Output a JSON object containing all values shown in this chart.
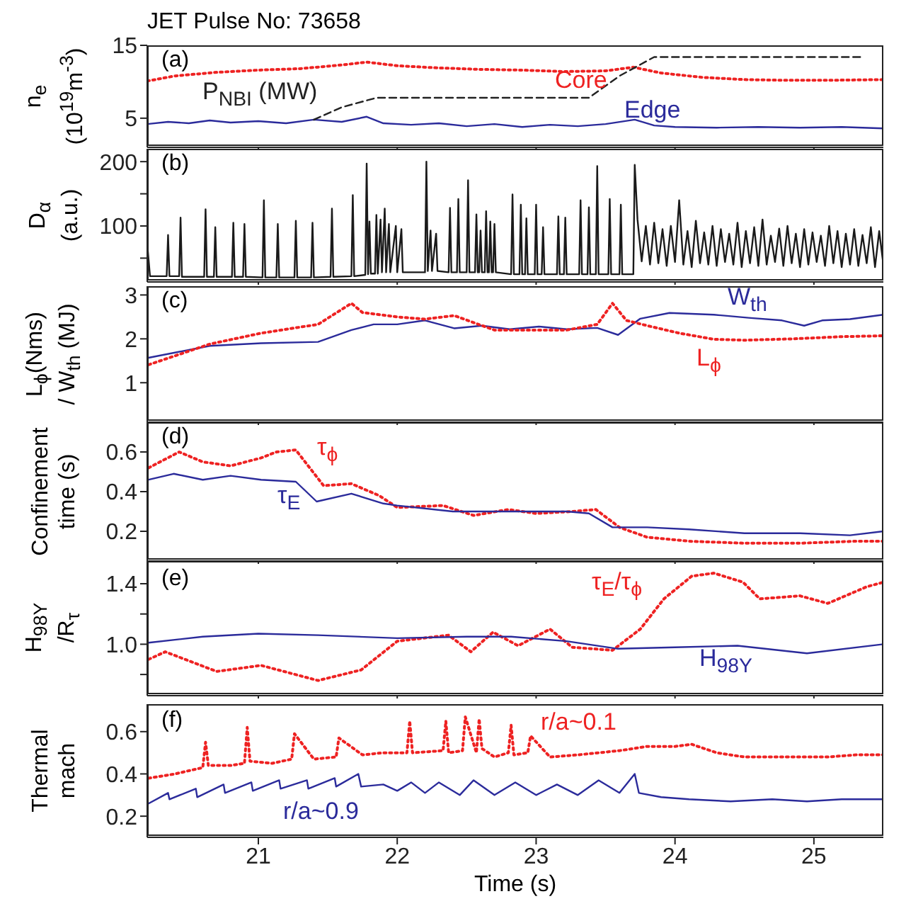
{
  "chart_data": [
    {
      "type": "line",
      "title": "JET Pulse No: 73658",
      "ylabel": "n$_{e}$\n(10$^{19}$m$^{-3}$)",
      "annotations": [
        "(a)"
      ],
      "xlim": [
        20.2,
        25.5
      ],
      "xticks": [
        21,
        22,
        23,
        24,
        25
      ],
      "ylim": [
        1,
        15
      ],
      "yticks": [
        5,
        15
      ],
      "tick_labels": "y",
      "series": [
        {
          "name": "Core",
          "color": "#ee2222",
          "line_style": "dotted",
          "x": [
            20.2,
            20.4,
            20.7,
            21.0,
            21.3,
            21.6,
            21.78,
            22.0,
            22.3,
            22.6,
            22.9,
            23.2,
            23.5,
            23.7,
            23.9,
            24.2,
            24.5,
            24.8,
            25.1,
            25.5
          ],
          "values": [
            10.1,
            10.8,
            11.3,
            11.6,
            11.8,
            12.3,
            12.7,
            12.2,
            11.9,
            11.7,
            11.6,
            11.4,
            11.5,
            12.0,
            11.2,
            10.6,
            10.3,
            10.2,
            10.2,
            10.3
          ]
        },
        {
          "name": "Edge",
          "color": "#2b2b9b",
          "line_style": "solid",
          "x": [
            20.2,
            20.35,
            20.5,
            20.65,
            20.8,
            21.0,
            21.2,
            21.4,
            21.6,
            21.78,
            21.9,
            22.1,
            22.3,
            22.5,
            22.7,
            22.9,
            23.1,
            23.3,
            23.5,
            23.71,
            23.85,
            24.0,
            24.3,
            24.6,
            24.9,
            25.2,
            25.5
          ],
          "values": [
            4.2,
            4.5,
            4.3,
            4.7,
            4.4,
            4.6,
            4.3,
            4.8,
            4.5,
            5.2,
            4.3,
            4.1,
            4.3,
            3.9,
            4.2,
            3.8,
            4.1,
            3.9,
            4.2,
            4.8,
            4.0,
            3.8,
            3.7,
            3.8,
            3.7,
            3.8,
            3.6
          ]
        },
        {
          "name": "P$_{NBI}$ (MW)",
          "color": "#222222",
          "line_style": "dashed",
          "x": [
            21.4,
            21.6,
            21.85,
            23.38,
            23.6,
            23.85,
            25.36
          ],
          "values": [
            4.8,
            6.5,
            7.8,
            7.8,
            10.8,
            13.4,
            13.4
          ]
        }
      ]
    },
    {
      "type": "line",
      "ylabel": "D$_{α}$\n(a.u.)",
      "annotations": [
        "(b)"
      ],
      "xlim": [
        20.2,
        25.5
      ],
      "xticks": [
        21,
        22,
        23,
        24,
        25
      ],
      "ylim": [
        13,
        220
      ],
      "yticks": [
        {
          "value": 50,
          "label": null
        },
        100,
        {
          "value": 150,
          "label": null
        },
        200
      ],
      "tick_labels": "y",
      "series": [
        {
          "color": "#1a1a1a",
          "line_style": "solid",
          "x": [
            20.2,
            20.22,
            20.34,
            20.35,
            20.36,
            20.43,
            20.44,
            20.45,
            20.61,
            20.62,
            20.63,
            20.68,
            20.69,
            20.7,
            20.81,
            20.82,
            20.83,
            20.89,
            20.9,
            20.91,
            21.03,
            21.04,
            21.05,
            21.13,
            21.14,
            21.15,
            21.26,
            21.27,
            21.28,
            21.38,
            21.39,
            21.4,
            21.52,
            21.53,
            21.54,
            21.67,
            21.68,
            21.69,
            21.77,
            21.78,
            21.79,
            21.8,
            21.81,
            21.84,
            21.85,
            21.86,
            21.88,
            21.89,
            21.91,
            21.92,
            21.94,
            21.95,
            21.99,
            22.0,
            22.03,
            22.04,
            22.2,
            22.21,
            22.22,
            22.24,
            22.25,
            22.28,
            22.29,
            22.37,
            22.38,
            22.39,
            22.43,
            22.44,
            22.45,
            22.5,
            22.51,
            22.52,
            22.56,
            22.57,
            22.58,
            22.59,
            22.6,
            22.61,
            22.63,
            22.64,
            22.65,
            22.66,
            22.67,
            22.68,
            22.69,
            22.7,
            22.71,
            22.82,
            22.83,
            22.84,
            22.88,
            22.89,
            22.9,
            22.92,
            22.93,
            22.94,
            22.99,
            23.0,
            23.01,
            23.04,
            23.05,
            23.06,
            23.15,
            23.16,
            23.17,
            23.2,
            23.21,
            23.22,
            23.31,
            23.32,
            23.33,
            23.37,
            23.38,
            23.39,
            23.43,
            23.44,
            23.45,
            23.52,
            23.53,
            23.54,
            23.6,
            23.61,
            23.62,
            23.7,
            23.71,
            23.73,
            23.76,
            23.79,
            23.82,
            23.85,
            23.88,
            23.91,
            23.94,
            23.97,
            24.0,
            24.03,
            24.06,
            24.09,
            24.12,
            24.15,
            24.18,
            24.21,
            24.24,
            24.27,
            24.3,
            24.33,
            24.36,
            24.39,
            24.42,
            24.45,
            24.48,
            24.51,
            24.54,
            24.57,
            24.6,
            24.63,
            24.66,
            24.69,
            24.72,
            24.75,
            24.78,
            24.81,
            24.84,
            24.87,
            24.9,
            24.93,
            24.96,
            24.99,
            25.02,
            25.05,
            25.08,
            25.11,
            25.14,
            25.17,
            25.2,
            25.23,
            25.26,
            25.29,
            25.32,
            25.35,
            25.38,
            25.41,
            25.44,
            25.47,
            25.5
          ],
          "values": [
            72,
            22,
            22,
            86,
            22,
            22,
            113,
            21,
            21,
            126,
            21,
            21,
            98,
            21,
            21,
            105,
            21,
            21,
            103,
            21,
            20,
            140,
            20,
            20,
            103,
            20,
            20,
            108,
            20,
            20,
            105,
            20,
            21,
            127,
            21,
            22,
            148,
            22,
            24,
            197,
            25,
            107,
            26,
            26,
            117,
            26,
            110,
            28,
            127,
            28,
            103,
            28,
            100,
            28,
            95,
            28,
            28,
            200,
            30,
            93,
            30,
            88,
            30,
            28,
            128,
            28,
            28,
            142,
            28,
            28,
            171,
            28,
            28,
            118,
            28,
            28,
            93,
            28,
            28,
            123,
            28,
            28,
            107,
            28,
            28,
            103,
            28,
            25,
            149,
            25,
            25,
            133,
            25,
            25,
            112,
            25,
            25,
            133,
            25,
            25,
            98,
            25,
            25,
            115,
            25,
            25,
            113,
            25,
            25,
            140,
            25,
            25,
            129,
            25,
            25,
            193,
            25,
            25,
            142,
            25,
            25,
            133,
            25,
            25,
            195,
            110,
            45,
            100,
            40,
            105,
            42,
            95,
            38,
            100,
            44,
            140,
            40,
            92,
            36,
            108,
            42,
            90,
            40,
            100,
            38,
            95,
            44,
            88,
            40,
            105,
            36,
            92,
            42,
            98,
            38,
            110,
            40,
            85,
            44,
            96,
            38,
            100,
            42,
            88,
            36,
            95,
            40,
            90,
            44,
            85,
            38,
            100,
            42,
            92,
            36,
            88,
            40,
            95,
            38,
            86,
            42,
            98,
            36,
            92,
            40
          ]
        }
      ]
    },
    {
      "type": "line",
      "ylabel": "L$_{ϕ}$(Nms)\n/ W$_{th}$ (MJ)",
      "annotations": [
        "(c)"
      ],
      "xlim": [
        20.2,
        25.5
      ],
      "xticks": [
        21,
        22,
        23,
        24,
        25
      ],
      "ylim": [
        0.1,
        3.2
      ],
      "yticks": [
        1,
        2,
        3
      ],
      "tick_labels": "y",
      "series": [
        {
          "name": "W$_{th}$",
          "color": "#2b2b9b",
          "line_style": "solid",
          "x": [
            20.21,
            20.65,
            21.02,
            21.43,
            21.67,
            21.83,
            22.0,
            22.2,
            22.41,
            22.61,
            22.81,
            23.02,
            23.22,
            23.44,
            23.59,
            23.75,
            23.96,
            24.28,
            24.53,
            24.77,
            24.93,
            25.06,
            25.26,
            25.5
          ],
          "values": [
            1.57,
            1.84,
            1.9,
            1.93,
            2.2,
            2.33,
            2.33,
            2.42,
            2.24,
            2.3,
            2.22,
            2.28,
            2.22,
            2.25,
            2.09,
            2.46,
            2.59,
            2.55,
            2.48,
            2.42,
            2.3,
            2.42,
            2.45,
            2.55
          ]
        },
        {
          "name": "L$_{ϕ}$",
          "color": "#ee2222",
          "line_style": "dotted",
          "x": [
            20.21,
            20.65,
            21.02,
            21.43,
            21.67,
            21.75,
            22.0,
            22.2,
            22.41,
            22.7,
            23.02,
            23.22,
            23.44,
            23.55,
            23.65,
            23.8,
            24.03,
            24.28,
            24.5,
            24.85,
            25.2,
            25.5
          ],
          "values": [
            1.41,
            1.88,
            2.13,
            2.33,
            2.81,
            2.6,
            2.5,
            2.45,
            2.53,
            2.2,
            2.2,
            2.2,
            2.33,
            2.81,
            2.42,
            2.3,
            2.13,
            1.99,
            1.97,
            2.0,
            2.05,
            2.07
          ]
        }
      ]
    },
    {
      "type": "line",
      "ylabel": "Confinement\ntime (s)",
      "annotations": [
        "(d)"
      ],
      "xlim": [
        20.2,
        25.5
      ],
      "xticks": [
        21,
        22,
        23,
        24,
        25
      ],
      "ylim": [
        0.05,
        0.75
      ],
      "yticks": [
        0.2,
        0.4,
        0.6
      ],
      "tick_labels": "y",
      "series": [
        {
          "name": "τ$_{ϕ}$",
          "color": "#ee2222",
          "line_style": "dotted",
          "x": [
            20.21,
            20.43,
            20.6,
            20.8,
            21.02,
            21.13,
            21.27,
            21.47,
            21.67,
            21.87,
            22.0,
            22.33,
            22.55,
            22.8,
            23.0,
            23.26,
            23.43,
            23.6,
            23.8,
            24.1,
            24.5,
            24.9,
            25.3,
            25.5
          ],
          "values": [
            0.52,
            0.6,
            0.55,
            0.53,
            0.57,
            0.6,
            0.61,
            0.43,
            0.44,
            0.38,
            0.32,
            0.33,
            0.28,
            0.31,
            0.29,
            0.3,
            0.31,
            0.22,
            0.17,
            0.15,
            0.14,
            0.14,
            0.15,
            0.15
          ]
        },
        {
          "name": "τ$_{E}$",
          "color": "#2b2b9b",
          "line_style": "solid",
          "x": [
            20.21,
            20.39,
            20.6,
            20.8,
            21.02,
            21.27,
            21.42,
            21.67,
            21.9,
            22.0,
            22.4,
            22.8,
            23.22,
            23.38,
            23.55,
            23.8,
            24.1,
            24.5,
            24.9,
            25.26,
            25.5
          ],
          "values": [
            0.46,
            0.49,
            0.46,
            0.48,
            0.46,
            0.45,
            0.35,
            0.39,
            0.34,
            0.33,
            0.3,
            0.3,
            0.3,
            0.29,
            0.22,
            0.22,
            0.21,
            0.19,
            0.19,
            0.18,
            0.2
          ]
        }
      ]
    },
    {
      "type": "line",
      "ylabel": "H$_{98Y}$\n/R$_{τ}$",
      "annotations": [
        "(e)"
      ],
      "xlim": [
        20.2,
        25.5
      ],
      "xticks": [
        21,
        22,
        23,
        24,
        25
      ],
      "ylim": [
        0.66,
        1.55
      ],
      "yticks": [
        {
          "value": 0.8,
          "label": null
        },
        {
          "value": 1.0,
          "label": "1.0"
        },
        {
          "value": 1.2,
          "label": null
        },
        {
          "value": 1.4,
          "label": "1.4"
        }
      ],
      "tick_labels": "y",
      "series": [
        {
          "name": "τ$_{E}$/τ$_{ϕ}$",
          "color": "#ee2222",
          "line_style": "dotted",
          "x": [
            20.21,
            20.33,
            20.7,
            21.02,
            21.43,
            21.74,
            22.0,
            22.37,
            22.53,
            22.69,
            22.87,
            23.1,
            23.26,
            23.55,
            23.75,
            23.92,
            24.12,
            24.28,
            24.49,
            24.61,
            24.9,
            25.1,
            25.38,
            25.5
          ],
          "values": [
            0.9,
            0.95,
            0.82,
            0.86,
            0.76,
            0.83,
            1.02,
            1.06,
            0.95,
            1.08,
            0.99,
            1.1,
            0.98,
            0.96,
            1.1,
            1.3,
            1.45,
            1.47,
            1.41,
            1.3,
            1.32,
            1.27,
            1.38,
            1.41
          ]
        },
        {
          "name": "H$_{98Y}$",
          "color": "#2b2b9b",
          "line_style": "solid",
          "x": [
            20.21,
            20.6,
            21.0,
            21.43,
            22.0,
            22.5,
            22.82,
            23.22,
            23.59,
            24.0,
            24.45,
            24.95,
            25.5
          ],
          "values": [
            1.01,
            1.05,
            1.07,
            1.06,
            1.04,
            1.05,
            1.05,
            1.02,
            0.97,
            0.98,
            0.99,
            0.94,
            1.0
          ]
        }
      ]
    },
    {
      "type": "line",
      "ylabel": "Thermal\nmach",
      "xlabel": "Time (s)",
      "annotations": [
        "(f)"
      ],
      "xlim": [
        20.2,
        25.5
      ],
      "xticks": [
        21,
        22,
        23,
        24,
        25
      ],
      "ylim": [
        0.1,
        0.73
      ],
      "yticks": [
        0.2,
        0.4,
        0.6
      ],
      "series": [
        {
          "name": "r/a~0.1",
          "color": "#ee2222",
          "line_style": "dotted",
          "x": [
            20.21,
            20.4,
            20.6,
            20.62,
            20.64,
            20.8,
            20.9,
            20.92,
            20.94,
            21.1,
            21.24,
            21.26,
            21.4,
            21.56,
            21.58,
            21.75,
            21.9,
            22.07,
            22.09,
            22.11,
            22.33,
            22.35,
            22.37,
            22.47,
            22.49,
            22.57,
            22.59,
            22.61,
            22.7,
            22.8,
            22.82,
            22.84,
            22.94,
            22.96,
            23.1,
            23.3,
            23.45,
            23.6,
            23.8,
            24.0,
            24.12,
            24.3,
            24.5,
            24.8,
            25.1,
            25.3,
            25.5
          ],
          "values": [
            0.38,
            0.4,
            0.43,
            0.55,
            0.44,
            0.44,
            0.45,
            0.62,
            0.46,
            0.45,
            0.47,
            0.59,
            0.47,
            0.48,
            0.57,
            0.49,
            0.5,
            0.5,
            0.65,
            0.5,
            0.51,
            0.65,
            0.5,
            0.51,
            0.67,
            0.5,
            0.66,
            0.52,
            0.48,
            0.5,
            0.63,
            0.49,
            0.5,
            0.58,
            0.48,
            0.49,
            0.5,
            0.51,
            0.53,
            0.53,
            0.54,
            0.5,
            0.48,
            0.48,
            0.48,
            0.49,
            0.49
          ]
        },
        {
          "name": "r/a~0.9",
          "color": "#2b2b9b",
          "line_style": "solid",
          "x": [
            20.21,
            20.35,
            20.36,
            20.55,
            20.56,
            20.75,
            20.76,
            20.95,
            20.96,
            21.15,
            21.16,
            21.35,
            21.36,
            21.55,
            21.56,
            21.72,
            21.74,
            21.9,
            22.0,
            22.1,
            22.2,
            22.3,
            22.45,
            22.55,
            22.7,
            22.85,
            23.0,
            23.15,
            23.3,
            23.45,
            23.6,
            23.71,
            23.74,
            23.9,
            24.1,
            24.4,
            24.7,
            24.95,
            25.2,
            25.5
          ],
          "values": [
            0.26,
            0.31,
            0.28,
            0.33,
            0.29,
            0.35,
            0.31,
            0.36,
            0.32,
            0.37,
            0.33,
            0.37,
            0.33,
            0.38,
            0.34,
            0.4,
            0.34,
            0.35,
            0.32,
            0.36,
            0.31,
            0.36,
            0.3,
            0.37,
            0.3,
            0.36,
            0.3,
            0.35,
            0.3,
            0.37,
            0.31,
            0.4,
            0.31,
            0.29,
            0.28,
            0.27,
            0.28,
            0.27,
            0.28,
            0.28
          ]
        }
      ]
    }
  ]
}
